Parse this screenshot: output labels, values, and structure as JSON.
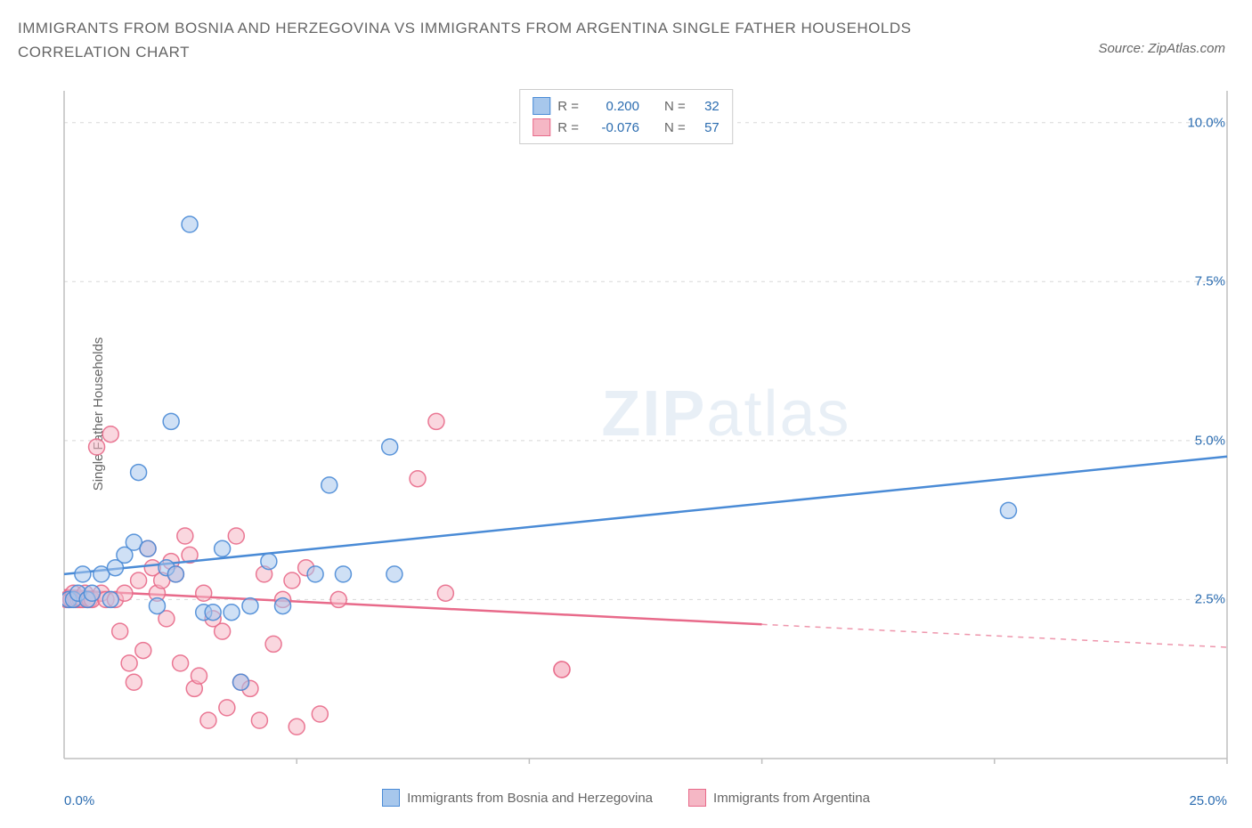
{
  "title": "IMMIGRANTS FROM BOSNIA AND HERZEGOVINA VS IMMIGRANTS FROM ARGENTINA SINGLE FATHER HOUSEHOLDS CORRELATION CHART",
  "source": "Source: ZipAtlas.com",
  "y_axis_label": "Single Father Households",
  "watermark_bold": "ZIP",
  "watermark_light": "atlas",
  "chart": {
    "type": "scatter",
    "x_domain": [
      0,
      25
    ],
    "y_domain": [
      0,
      10.5
    ],
    "x_min_label": "0.0%",
    "x_max_label": "25.0%",
    "y_ticks": [
      2.5,
      5.0,
      7.5,
      10.0
    ],
    "y_tick_labels": [
      "2.5%",
      "5.0%",
      "7.5%",
      "10.0%"
    ],
    "x_minor_ticks": [
      5,
      10,
      15,
      20,
      25
    ],
    "grid_color": "#d8d8d8",
    "axis_color": "#bfbfbf",
    "background": "#ffffff",
    "marker_radius": 9,
    "marker_opacity": 0.55,
    "series": [
      {
        "id": "bosnia",
        "name": "Immigrants from Bosnia and Herzegovina",
        "color_fill": "#a7c7ec",
        "color_stroke": "#4a8bd6",
        "r_value": "0.200",
        "n_value": "32",
        "regression": {
          "y_at_xmin": 2.9,
          "y_at_xmax": 4.75,
          "solid_to_x": 25
        },
        "points": [
          [
            0.1,
            2.5
          ],
          [
            0.2,
            2.5
          ],
          [
            0.3,
            2.6
          ],
          [
            0.4,
            2.9
          ],
          [
            0.5,
            2.5
          ],
          [
            0.6,
            2.6
          ],
          [
            0.8,
            2.9
          ],
          [
            1.0,
            2.5
          ],
          [
            1.1,
            3.0
          ],
          [
            1.3,
            3.2
          ],
          [
            1.5,
            3.4
          ],
          [
            1.6,
            4.5
          ],
          [
            1.8,
            3.3
          ],
          [
            2.0,
            2.4
          ],
          [
            2.2,
            3.0
          ],
          [
            2.3,
            5.3
          ],
          [
            2.4,
            2.9
          ],
          [
            2.7,
            8.4
          ],
          [
            3.0,
            2.3
          ],
          [
            3.2,
            2.3
          ],
          [
            3.4,
            3.3
          ],
          [
            3.6,
            2.3
          ],
          [
            3.8,
            1.2
          ],
          [
            4.0,
            2.4
          ],
          [
            4.4,
            3.1
          ],
          [
            4.7,
            2.4
          ],
          [
            5.4,
            2.9
          ],
          [
            5.7,
            4.3
          ],
          [
            6.0,
            2.9
          ],
          [
            7.0,
            4.9
          ],
          [
            7.1,
            2.9
          ],
          [
            20.3,
            3.9
          ]
        ]
      },
      {
        "id": "argentina",
        "name": "Immigrants from Argentina",
        "color_fill": "#f5b7c5",
        "color_stroke": "#e86a8a",
        "r_value": "-0.076",
        "n_value": "57",
        "regression": {
          "y_at_xmin": 2.65,
          "y_at_xmax": 1.75,
          "solid_to_x": 15
        },
        "points": [
          [
            0.05,
            2.5
          ],
          [
            0.1,
            2.5
          ],
          [
            0.15,
            2.5
          ],
          [
            0.2,
            2.6
          ],
          [
            0.25,
            2.5
          ],
          [
            0.3,
            2.5
          ],
          [
            0.35,
            2.5
          ],
          [
            0.4,
            2.5
          ],
          [
            0.45,
            2.6
          ],
          [
            0.5,
            2.5
          ],
          [
            0.55,
            2.5
          ],
          [
            0.6,
            2.5
          ],
          [
            0.7,
            4.9
          ],
          [
            0.8,
            2.6
          ],
          [
            0.9,
            2.5
          ],
          [
            1.0,
            5.1
          ],
          [
            1.1,
            2.5
          ],
          [
            1.2,
            2.0
          ],
          [
            1.3,
            2.6
          ],
          [
            1.4,
            1.5
          ],
          [
            1.5,
            1.2
          ],
          [
            1.6,
            2.8
          ],
          [
            1.7,
            1.7
          ],
          [
            1.8,
            3.3
          ],
          [
            1.9,
            3.0
          ],
          [
            2.0,
            2.6
          ],
          [
            2.1,
            2.8
          ],
          [
            2.2,
            2.2
          ],
          [
            2.3,
            3.1
          ],
          [
            2.4,
            2.9
          ],
          [
            2.5,
            1.5
          ],
          [
            2.6,
            3.5
          ],
          [
            2.7,
            3.2
          ],
          [
            2.8,
            1.1
          ],
          [
            2.9,
            1.3
          ],
          [
            3.0,
            2.6
          ],
          [
            3.1,
            0.6
          ],
          [
            3.2,
            2.2
          ],
          [
            3.4,
            2.0
          ],
          [
            3.5,
            0.8
          ],
          [
            3.7,
            3.5
          ],
          [
            3.8,
            1.2
          ],
          [
            4.0,
            1.1
          ],
          [
            4.2,
            0.6
          ],
          [
            4.3,
            2.9
          ],
          [
            4.5,
            1.8
          ],
          [
            4.7,
            2.5
          ],
          [
            4.9,
            2.8
          ],
          [
            5.0,
            0.5
          ],
          [
            5.2,
            3.0
          ],
          [
            5.5,
            0.7
          ],
          [
            5.9,
            2.5
          ],
          [
            7.6,
            4.4
          ],
          [
            8.0,
            5.3
          ],
          [
            8.2,
            2.6
          ],
          [
            10.7,
            1.4
          ],
          [
            10.7,
            1.4
          ]
        ]
      }
    ]
  },
  "legend_text": {
    "R_label": "R =",
    "N_label": "N ="
  }
}
